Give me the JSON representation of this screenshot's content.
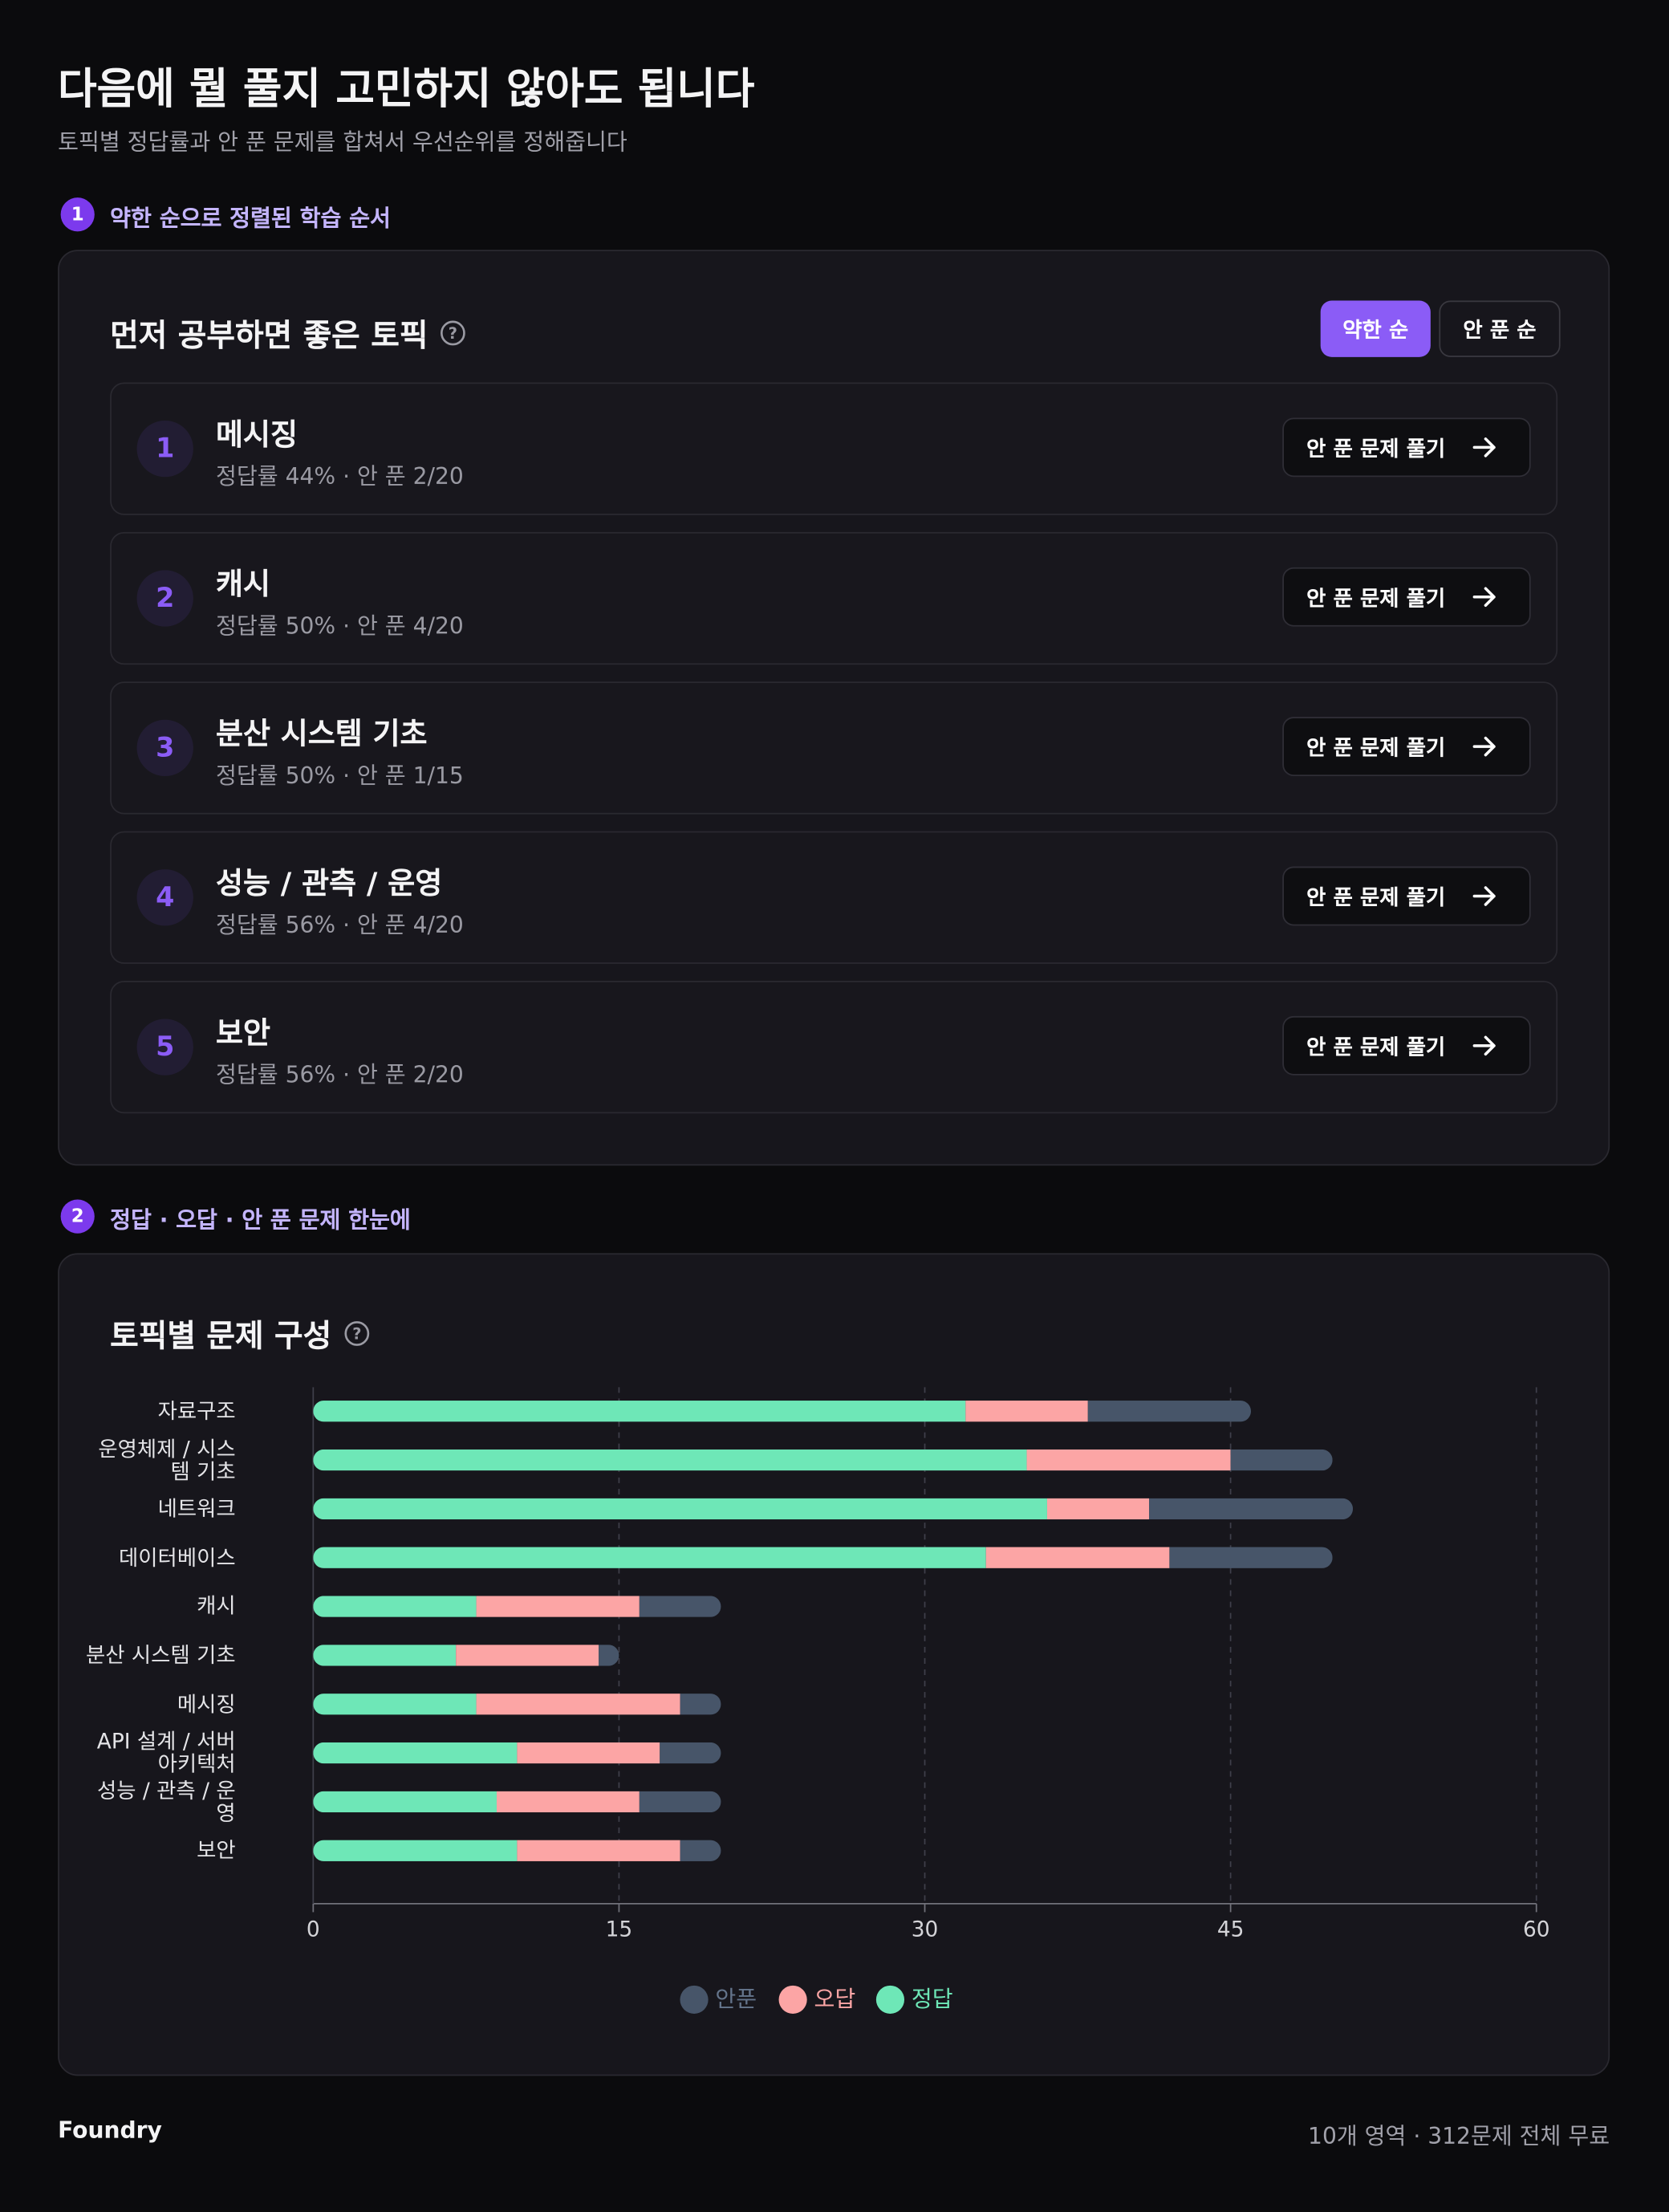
{
  "header": {
    "title": "다음에 뭘 풀지 고민하지 않아도 됩니다",
    "subtitle": "토픽별 정답률과 안 푼 문제를 합쳐서 우선순위를 정해줍니다"
  },
  "section1": {
    "number": "1",
    "label": "약한 순으로 정렬된 학습 순서",
    "card_title": "먼저 공부하면 좋은 토픽",
    "toggle": [
      "약한 순",
      "안 푼 순"
    ],
    "items": [
      {
        "rank": "1",
        "name": "메시징",
        "detail": "정답률 44% · 안 푼 2/20",
        "button": "안 푼 문제 풀기"
      },
      {
        "rank": "2",
        "name": "캐시",
        "detail": "정답률 50% · 안 푼 4/20",
        "button": "안 푼 문제 풀기"
      },
      {
        "rank": "3",
        "name": "분산 시스템 기초",
        "detail": "정답률 50% · 안 푼 1/15",
        "button": "안 푼 문제 풀기"
      },
      {
        "rank": "4",
        "name": "성능 / 관측 / 운영",
        "detail": "정답률 56% · 안 푼 4/20",
        "button": "안 푼 문제 풀기"
      },
      {
        "rank": "5",
        "name": "보안",
        "detail": "정답률 56% · 안 푼 2/20",
        "button": "안 푼 문제 풀기"
      }
    ]
  },
  "section2": {
    "number": "2",
    "label": "정답 · 오답 · 안 푼 문제 한눈에"
  },
  "chart_data": {
    "type": "stacked-bar-horizontal",
    "title": "토픽별 문제 구성",
    "categories": [
      "자료구조",
      "운영체제 / 시스템 기초",
      "네트워크",
      "데이터베이스",
      "캐시",
      "분산 시스템 기초",
      "메시징",
      "API 설계 / 서버 아키텍처",
      "성능 / 관측 / 운영",
      "보안"
    ],
    "series": [
      {
        "name": "정답",
        "color": "#6ee7b7",
        "values": [
          32,
          35,
          36,
          33,
          8,
          7,
          8,
          10,
          9,
          10
        ]
      },
      {
        "name": "오답",
        "color": "#fca5a5",
        "values": [
          6,
          10,
          5,
          9,
          8,
          7,
          10,
          7,
          7,
          8
        ]
      },
      {
        "name": "안푼",
        "color": "#475569",
        "values": [
          8,
          5,
          10,
          8,
          4,
          1,
          2,
          3,
          4,
          2
        ]
      }
    ],
    "xlim": [
      0,
      60
    ],
    "xticks": [
      0,
      15,
      30,
      45,
      60
    ],
    "grid": true
  },
  "footer": {
    "brand": "Foundry",
    "info": "10개 영역 · 312문제 전체 무료"
  }
}
